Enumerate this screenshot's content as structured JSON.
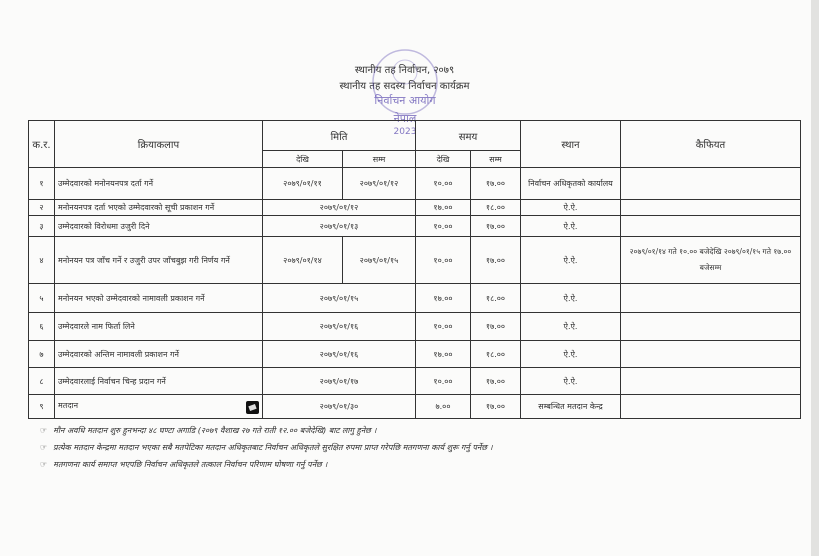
{
  "header": {
    "line1": "स्थानीय तह निर्वाचन, २०७९",
    "line2": "स्थानीय तह सदस्य निर्वाचन कार्यक्रम"
  },
  "seal": {
    "text_top": "निर्वाचन आयोग",
    "text_mid": "नेपाल",
    "text_year": "2023",
    "color": "#5b4bb0"
  },
  "table": {
    "headers": {
      "sn": "क.र.",
      "activity": "क्रियाकलाप",
      "date": "मिति",
      "time": "समय",
      "place": "स्थान",
      "remarks": "कैफियत",
      "from": "देखि",
      "to": "सम्म"
    },
    "rows": [
      {
        "sn": "१",
        "activity": "उम्मेदवारको मनोनयनपत्र दर्ता गर्ने",
        "date_from": "२०७९/०१/११",
        "date_to": "२०७९/०१/१२",
        "time_from": "१०.००",
        "time_to": "१७.००",
        "place": "निर्वाचन अधिकृतको कार्यालय",
        "remarks": ""
      },
      {
        "sn": "२",
        "activity": "मनोनयनपत्र दर्ता भएको उम्मेदवारको सूची प्रकाशन गर्ने",
        "date": "२०७९/०१/१२",
        "time_from": "१७.००",
        "time_to": "१८.००",
        "place": "ऐ.ऐ.",
        "remarks": ""
      },
      {
        "sn": "३",
        "activity": "उम्मेदवारको विरोधमा उजुरी दिने",
        "date": "२०७९/०१/१३",
        "time_from": "१०.००",
        "time_to": "१७.००",
        "place": "ऐ.ऐ.",
        "remarks": ""
      },
      {
        "sn": "४",
        "activity": "मनोनयन पत्र जाँच गर्ने र उजुरी उपर जाँचबुझ गरी निर्णय गर्ने",
        "date_from": "२०७९/०१/१४",
        "date_to": "२०७९/०१/१५",
        "time_from": "१०.००",
        "time_to": "१७.००",
        "place": "ऐ.ऐ.",
        "remarks": "२०७९/०१/१४ गते १०.०० बजेदेखि २०७९/०१/१५ गते १७.०० बजेसम्म"
      },
      {
        "sn": "५",
        "activity": "मनोनयन भएको उम्मेदवारको नामावली प्रकाशन गर्ने",
        "date": "२०७९/०१/१५",
        "time_from": "१७.००",
        "time_to": "१८.००",
        "place": "ऐ.ऐ.",
        "remarks": ""
      },
      {
        "sn": "६",
        "activity": "उम्मेदवारले नाम फिर्ता लिने",
        "date": "२०७९/०१/१६",
        "time_from": "१०.००",
        "time_to": "१७.००",
        "place": "ऐ.ऐ.",
        "remarks": ""
      },
      {
        "sn": "७",
        "activity": "उम्मेदवारको अन्तिम नामावली प्रकाशन गर्ने",
        "date": "२०७९/०१/१६",
        "time_from": "१७.००",
        "time_to": "१८.००",
        "place": "ऐ.ऐ.",
        "remarks": ""
      },
      {
        "sn": "८",
        "activity": "उम्मेदवारलाई निर्वाचन चिन्ह प्रदान गर्ने",
        "date": "२०७९/०१/१७",
        "time_from": "१०.००",
        "time_to": "१७.००",
        "place": "ऐ.ऐ.",
        "remarks": ""
      },
      {
        "sn": "९",
        "activity": "मतदान",
        "icon": "ballot-icon",
        "date": "२०७९/०१/३०",
        "time_from": "७.००",
        "time_to": "१७.००",
        "place": "सम्बन्धित मतदान केन्द्र",
        "remarks": ""
      }
    ]
  },
  "notes": [
    "मौन अवधि मतदान शुरु हुनभन्दा ४८ घण्टा अगाडि (२०७९ वैशाख २७ गते राती १२.०० बजेदेखि) बाट लागु हुनेछ ।",
    "प्रत्येक मतदान केन्द्रमा मतदान भएका सबै मतपेटिका मतदान अधिकृतबाट निर्वाचन अधिकृतले सुरक्षित रुपमा प्राप्त गरेपछि मतगणना कार्य शुरू गर्नु पर्नेछ ।",
    "मतगणना कार्य समाप्त भएपछि निर्वाचन अधिकृतले तत्काल निर्वाचन परिणाम घोषणा गर्नु पर्नेछ ।"
  ],
  "note_bullet": "☞"
}
